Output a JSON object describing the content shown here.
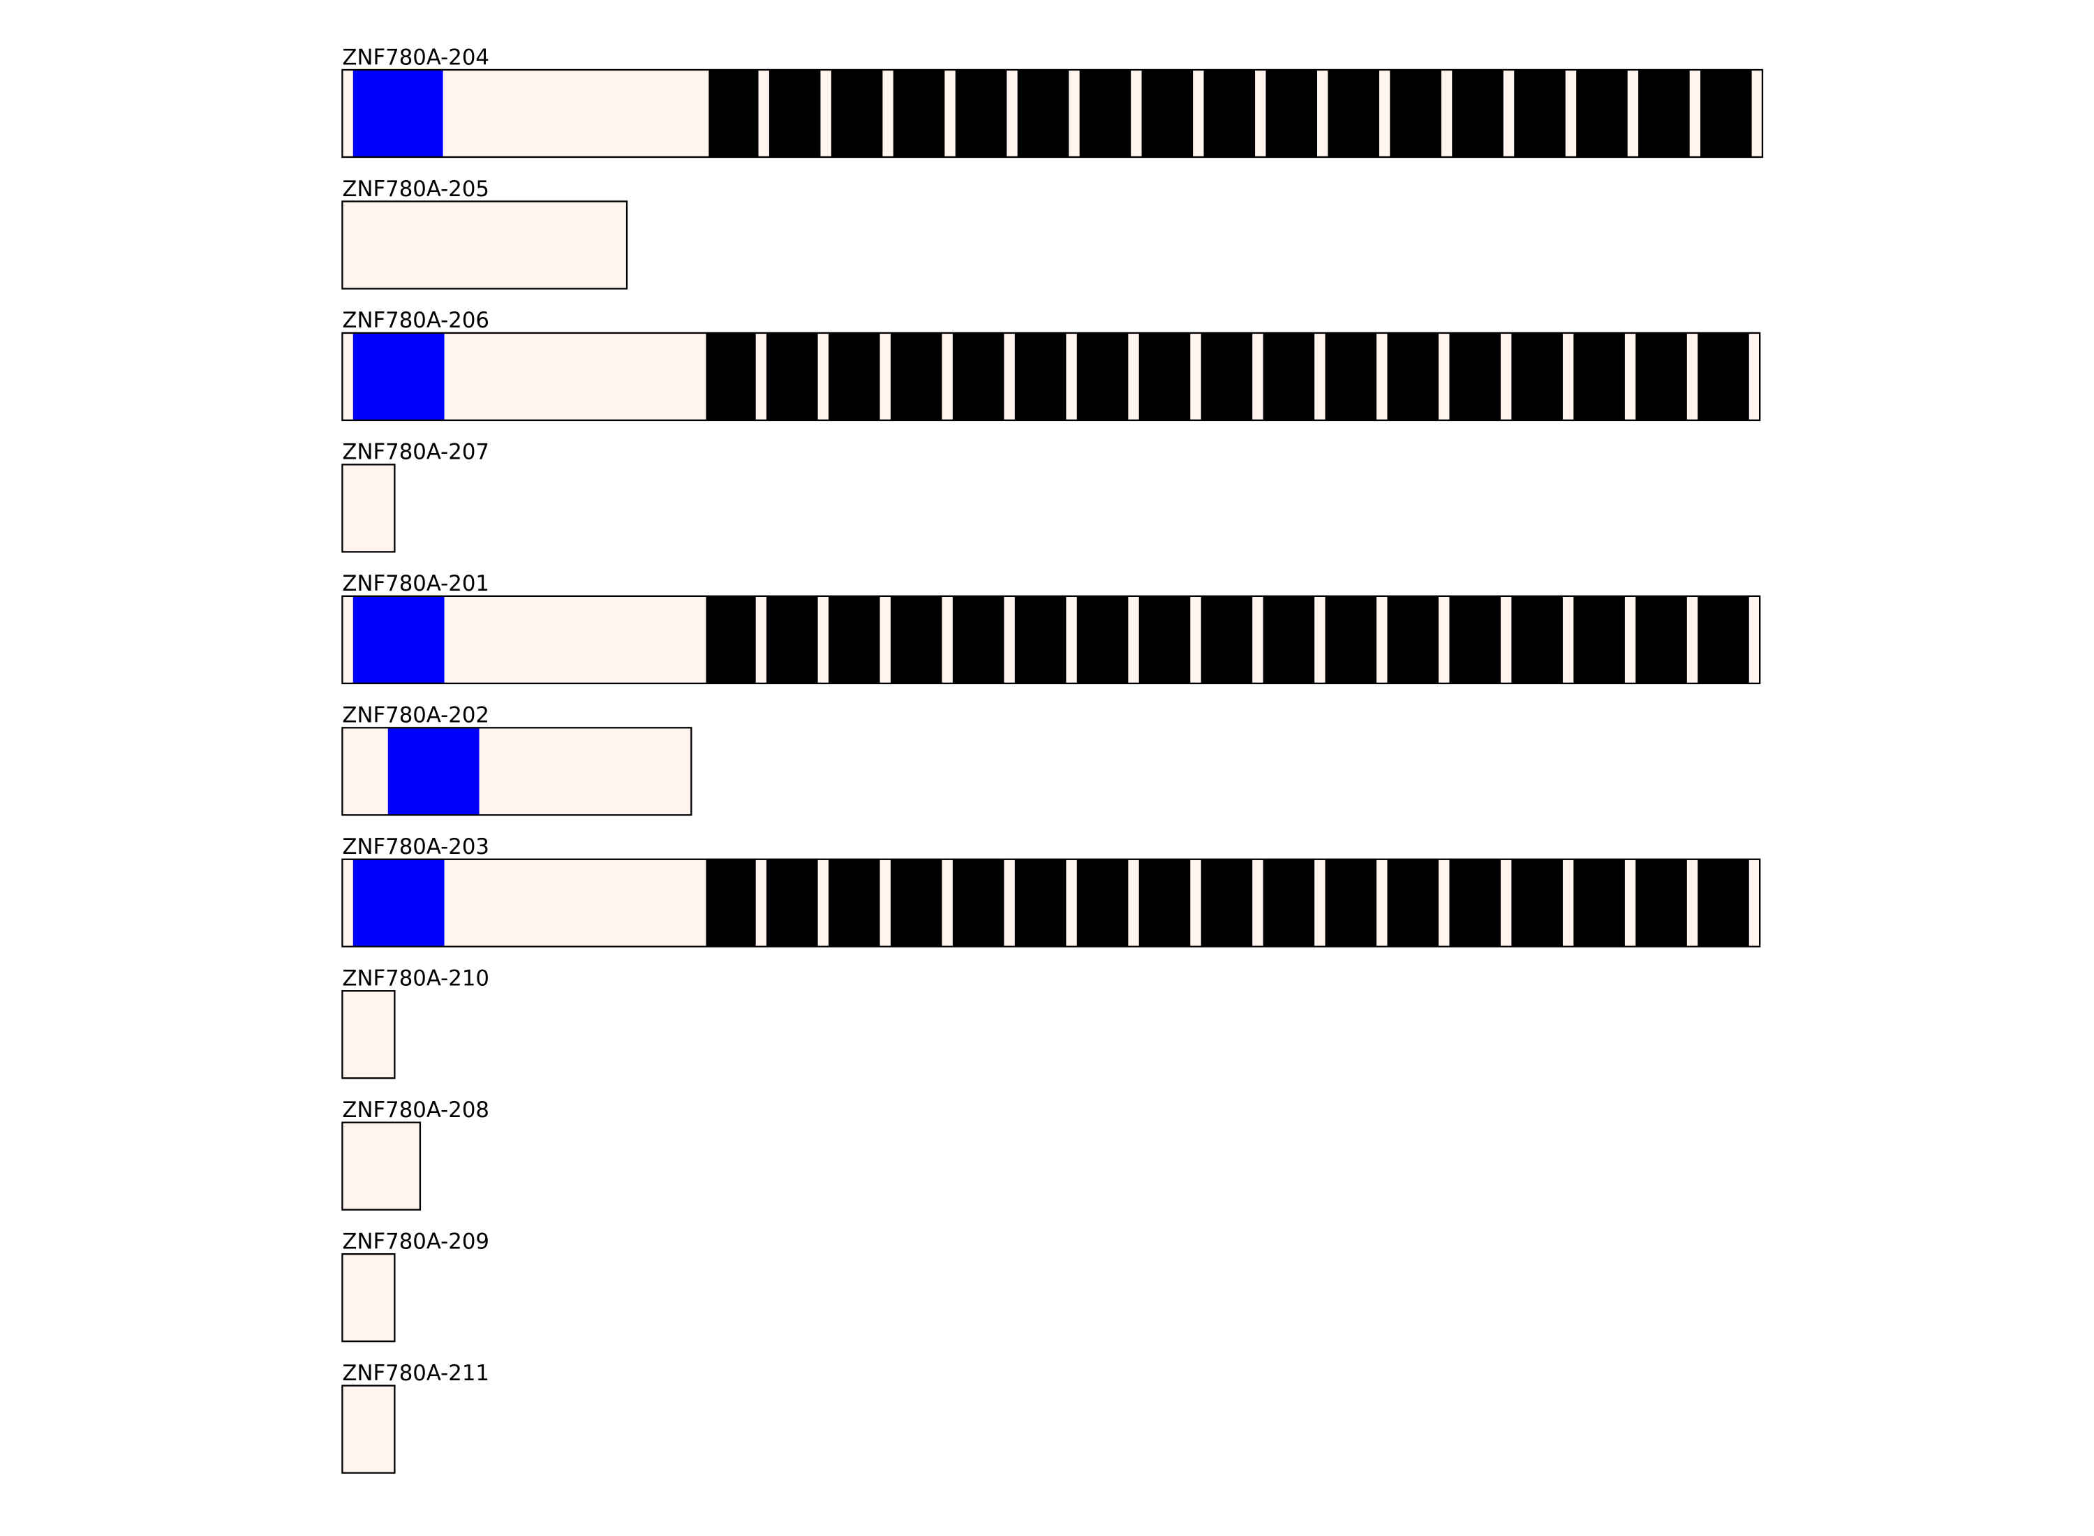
{
  "colors": {
    "background": "#ffffff",
    "utr": "#fff4ee",
    "domain": "#0000ff",
    "repeat": "#000000",
    "outline": "#000000"
  },
  "transcripts": [
    {
      "name": "ZNF780A-204",
      "kind": "full"
    },
    {
      "name": "ZNF780A-205",
      "kind": "short"
    },
    {
      "name": "ZNF780A-206",
      "kind": "full"
    },
    {
      "name": "ZNF780A-207",
      "kind": "fragment"
    },
    {
      "name": "ZNF780A-201",
      "kind": "full"
    },
    {
      "name": "ZNF780A-202",
      "kind": "partial-domain"
    },
    {
      "name": "ZNF780A-203",
      "kind": "full"
    },
    {
      "name": "ZNF780A-210",
      "kind": "fragment"
    },
    {
      "name": "ZNF780A-208",
      "kind": "fragment"
    },
    {
      "name": "ZNF780A-209",
      "kind": "fragment"
    },
    {
      "name": "ZNF780A-211",
      "kind": "fragment"
    }
  ]
}
